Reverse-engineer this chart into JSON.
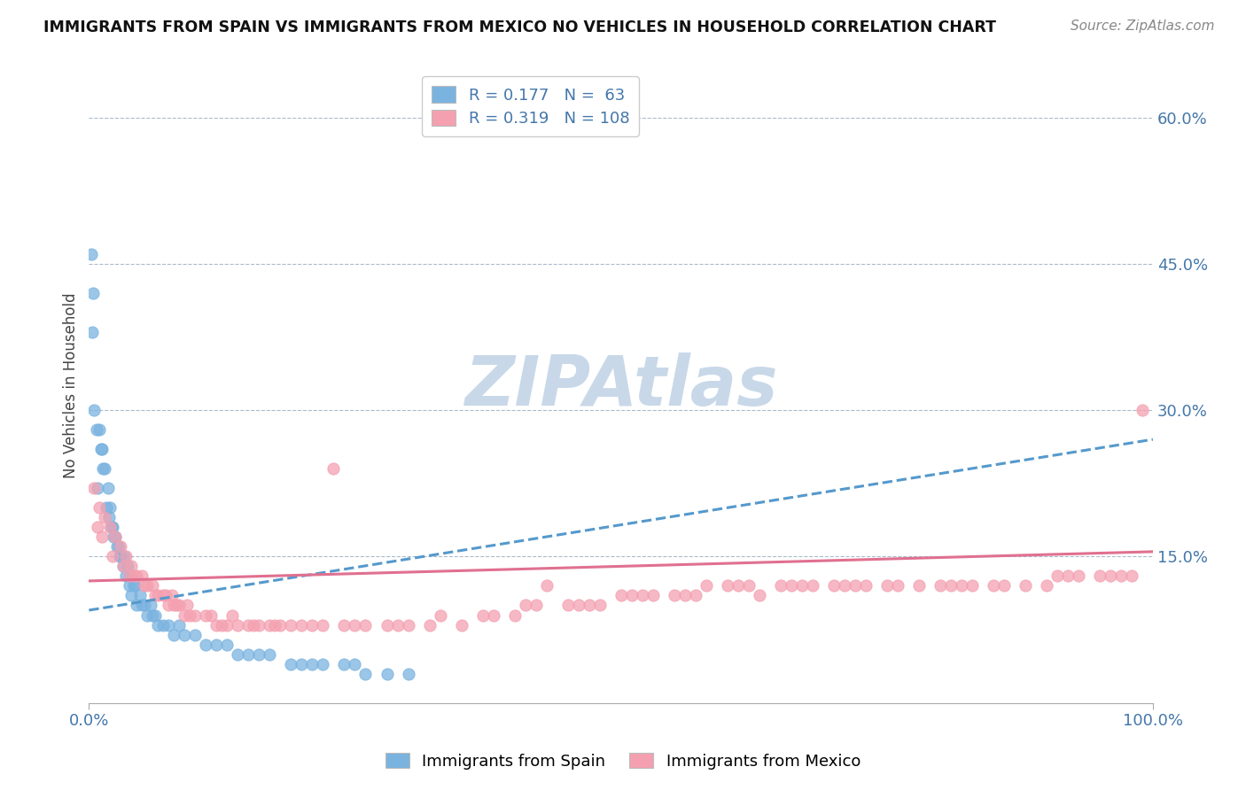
{
  "title": "IMMIGRANTS FROM SPAIN VS IMMIGRANTS FROM MEXICO NO VEHICLES IN HOUSEHOLD CORRELATION CHART",
  "source": "Source: ZipAtlas.com",
  "ylabel": "No Vehicles in Household",
  "xlim": [
    0,
    100
  ],
  "ylim": [
    0,
    65
  ],
  "x_tick_labels": [
    "0.0%",
    "100.0%"
  ],
  "y_ticks": [
    15,
    30,
    45,
    60
  ],
  "y_tick_labels": [
    "15.0%",
    "30.0%",
    "45.0%",
    "60.0%"
  ],
  "spain_R": 0.177,
  "spain_N": 63,
  "mexico_R": 0.319,
  "mexico_N": 108,
  "spain_color": "#7ab3e0",
  "mexico_color": "#f4a0b0",
  "spain_line_color": "#5599cc",
  "mexico_line_color": "#e07090",
  "watermark": "ZIPAtlas",
  "watermark_color": "#c8d8e8",
  "spain_x": [
    0.2,
    0.5,
    1.0,
    1.2,
    1.5,
    1.8,
    2.0,
    2.2,
    2.5,
    2.8,
    3.0,
    3.2,
    3.5,
    3.8,
    4.0,
    4.5,
    5.0,
    5.5,
    6.0,
    6.5,
    7.0,
    8.0,
    9.0,
    10.0,
    11.0,
    12.0,
    14.0,
    15.0,
    17.0,
    20.0,
    22.0,
    25.0,
    0.3,
    0.8,
    1.3,
    1.6,
    2.1,
    2.6,
    3.3,
    3.9,
    4.2,
    4.8,
    5.2,
    6.2,
    7.5,
    0.4,
    0.7,
    1.1,
    1.9,
    2.3,
    2.9,
    3.6,
    4.3,
    5.8,
    8.5,
    13.0,
    16.0,
    19.0,
    21.0,
    24.0,
    26.0,
    28.0,
    30.0
  ],
  "spain_y": [
    46,
    30,
    28,
    26,
    24,
    22,
    20,
    18,
    17,
    16,
    15,
    14,
    13,
    12,
    11,
    10,
    10,
    9,
    9,
    8,
    8,
    7,
    7,
    7,
    6,
    6,
    5,
    5,
    5,
    4,
    4,
    4,
    38,
    22,
    24,
    20,
    18,
    16,
    15,
    13,
    12,
    11,
    10,
    9,
    8,
    42,
    28,
    26,
    19,
    17,
    15,
    14,
    12,
    10,
    8,
    6,
    5,
    4,
    4,
    4,
    3,
    3,
    3
  ],
  "mexico_x": [
    0.5,
    1.0,
    1.5,
    2.0,
    2.5,
    3.0,
    3.5,
    4.0,
    4.5,
    5.0,
    5.5,
    6.0,
    6.5,
    7.0,
    7.5,
    8.0,
    8.5,
    9.0,
    9.5,
    10.0,
    11.0,
    12.0,
    13.0,
    14.0,
    15.0,
    16.0,
    17.0,
    18.0,
    19.0,
    20.0,
    22.0,
    24.0,
    26.0,
    28.0,
    30.0,
    32.0,
    35.0,
    38.0,
    40.0,
    42.0,
    45.0,
    48.0,
    50.0,
    52.0,
    55.0,
    58.0,
    60.0,
    62.0,
    65.0,
    68.0,
    70.0,
    72.0,
    75.0,
    78.0,
    80.0,
    82.0,
    85.0,
    88.0,
    90.0,
    92.0,
    95.0,
    97.0,
    98.0,
    99.0,
    0.8,
    1.2,
    2.2,
    3.2,
    4.2,
    5.2,
    6.2,
    7.2,
    8.2,
    9.2,
    11.5,
    13.5,
    15.5,
    17.5,
    21.0,
    25.0,
    29.0,
    33.0,
    37.0,
    41.0,
    46.0,
    51.0,
    56.0,
    61.0,
    66.0,
    71.0,
    76.0,
    81.0,
    86.0,
    91.0,
    96.0,
    3.8,
    7.8,
    12.5,
    23.0,
    43.0,
    53.0,
    63.0,
    73.0,
    83.0,
    93.0,
    47.0,
    57.0,
    67.0
  ],
  "mexico_y": [
    22,
    20,
    19,
    18,
    17,
    16,
    15,
    14,
    13,
    13,
    12,
    12,
    11,
    11,
    10,
    10,
    10,
    9,
    9,
    9,
    9,
    8,
    8,
    8,
    8,
    8,
    8,
    8,
    8,
    8,
    8,
    8,
    8,
    8,
    8,
    8,
    8,
    9,
    9,
    10,
    10,
    10,
    11,
    11,
    11,
    12,
    12,
    12,
    12,
    12,
    12,
    12,
    12,
    12,
    12,
    12,
    12,
    12,
    12,
    13,
    13,
    13,
    13,
    30,
    18,
    17,
    15,
    14,
    13,
    12,
    11,
    11,
    10,
    10,
    9,
    9,
    8,
    8,
    8,
    8,
    8,
    9,
    9,
    10,
    10,
    11,
    11,
    12,
    12,
    12,
    12,
    12,
    12,
    13,
    13,
    13,
    11,
    8,
    24,
    12,
    11,
    11,
    12,
    12,
    13,
    10,
    11,
    12
  ],
  "spain_trend": [
    0,
    100,
    9.5,
    27.0
  ],
  "mexico_trend": [
    0,
    100,
    12.5,
    15.5
  ]
}
